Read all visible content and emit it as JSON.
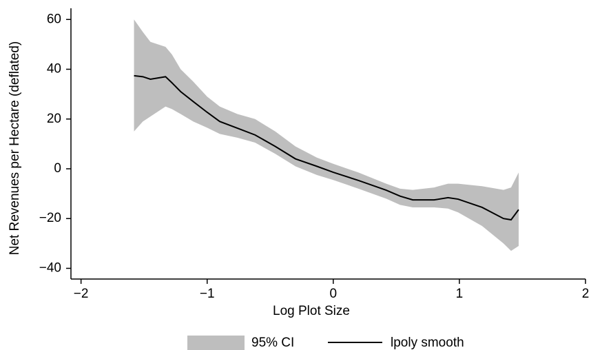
{
  "chart_data": {
    "type": "line",
    "x_label": "Log Plot Size",
    "y_label": "Net Revenues per Hectare (deflated)",
    "x": [
      -1.58,
      -1.51,
      -1.45,
      -1.33,
      -1.28,
      -1.21,
      -1.11,
      -1,
      -0.9,
      -0.76,
      -0.62,
      -0.46,
      -0.3,
      -0.13,
      0,
      0.2,
      0.42,
      0.53,
      0.63,
      0.8,
      0.91,
      0.99,
      1.18,
      1.35,
      1.41,
      1.47
    ],
    "series": [
      {
        "name": "95% CI",
        "color": "#bebebe",
        "upper": [
          60,
          55,
          51,
          49,
          46,
          40,
          35,
          29,
          25,
          22,
          20,
          15,
          9,
          4.5,
          2,
          -1.5,
          -6,
          -8,
          -8.5,
          -7.5,
          -6,
          -6,
          -7,
          -8.5,
          -7.5,
          -1.5
        ],
        "lower": [
          15,
          19,
          21,
          25,
          24,
          22,
          19,
          16.5,
          14,
          12.5,
          10.5,
          6,
          1,
          -2.5,
          -4.5,
          -8,
          -12,
          -14.5,
          -15.5,
          -15.5,
          -16,
          -17.5,
          -23,
          -30,
          -33,
          -31
        ]
      },
      {
        "name": "lpoly smooth",
        "color": "#000000",
        "values": [
          37.4,
          37,
          36,
          37,
          34.6,
          31,
          27,
          22.7,
          19,
          16.3,
          13.6,
          9,
          4,
          1,
          -1.4,
          -4.7,
          -8.6,
          -11,
          -12.5,
          -12.5,
          -11.6,
          -12.2,
          -15.5,
          -20,
          -20.5,
          -16.4
        ]
      }
    ],
    "xlim": [
      -2.08,
      2.0
    ],
    "ylim": [
      -44.3,
      64.5
    ],
    "xticks": [
      {
        "value": -2,
        "label": "−2"
      },
      {
        "value": -1,
        "label": "−1"
      },
      0,
      1,
      2
    ],
    "yticks": [
      {
        "value": -40,
        "label": "−40"
      },
      {
        "value": -20,
        "label": "−20"
      },
      0,
      20,
      40,
      60
    ],
    "grid": false,
    "legend": "bottom"
  }
}
